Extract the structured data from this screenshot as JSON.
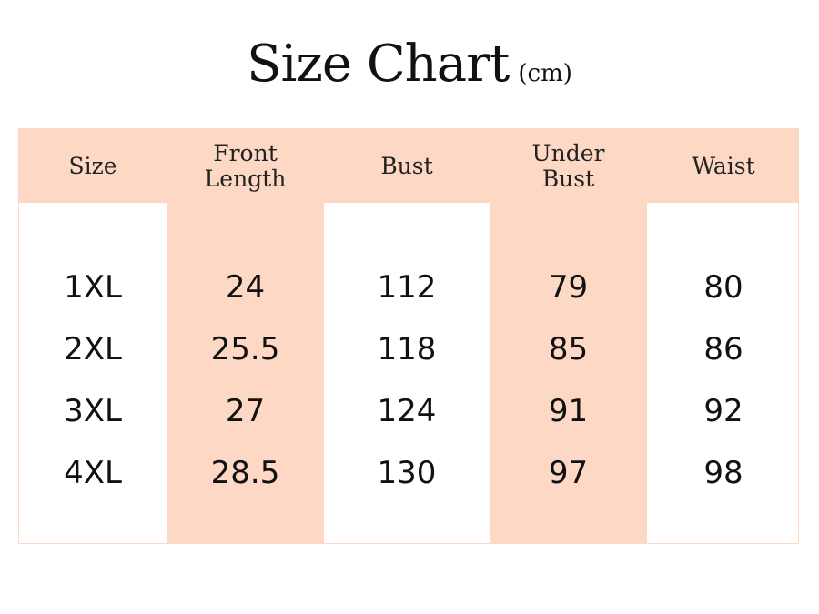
{
  "title": {
    "main": "Size Chart",
    "unit": "(cm)"
  },
  "colors": {
    "accent": "#fdd9c5",
    "text": "#111111"
  },
  "columns": [
    "Size",
    "Front Length",
    "Bust",
    "Under Bust",
    "Waist"
  ],
  "rows": [
    [
      "1XL",
      "24",
      "112",
      "79",
      "80"
    ],
    [
      "2XL",
      "25.5",
      "118",
      "85",
      "86"
    ],
    [
      "3XL",
      "27",
      "124",
      "91",
      "92"
    ],
    [
      "4XL",
      "28.5",
      "130",
      "97",
      "98"
    ]
  ]
}
